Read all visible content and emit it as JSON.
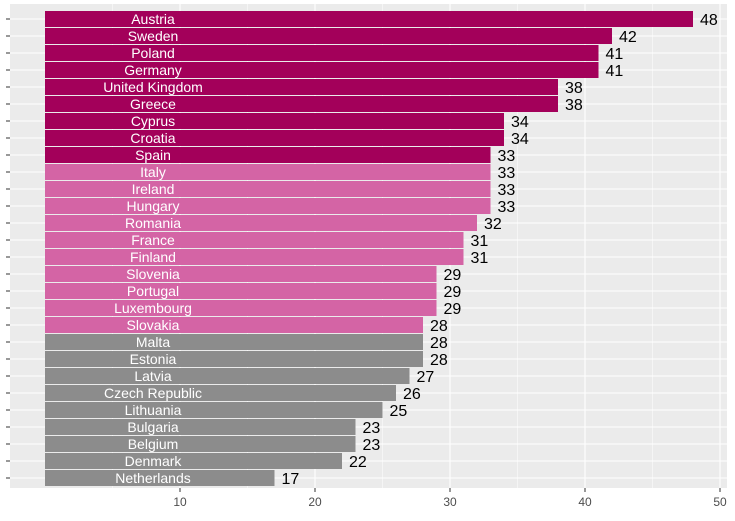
{
  "chart_data": {
    "type": "bar",
    "orientation": "horizontal",
    "title": "",
    "xlabel": "",
    "ylabel": "",
    "xlim": [
      0,
      50
    ],
    "xticks": [
      10,
      20,
      30,
      40,
      50
    ],
    "grid": true,
    "legend": "none",
    "colors": {
      "top_group": "#a3005a",
      "middle_group": "#d464a5",
      "bottom_group": "#8c8c8c",
      "panel": "#ebebeb",
      "grid": "#ffffff"
    },
    "bars": [
      {
        "category": "Austria",
        "value": 48,
        "group": "top_group"
      },
      {
        "category": "Sweden",
        "value": 42,
        "group": "top_group"
      },
      {
        "category": "Poland",
        "value": 41,
        "group": "top_group"
      },
      {
        "category": "Germany",
        "value": 41,
        "group": "top_group"
      },
      {
        "category": "United Kingdom",
        "value": 38,
        "group": "top_group"
      },
      {
        "category": "Greece",
        "value": 38,
        "group": "top_group"
      },
      {
        "category": "Cyprus",
        "value": 34,
        "group": "top_group"
      },
      {
        "category": "Croatia",
        "value": 34,
        "group": "top_group"
      },
      {
        "category": "Spain",
        "value": 33,
        "group": "top_group"
      },
      {
        "category": "Italy",
        "value": 33,
        "group": "middle_group"
      },
      {
        "category": "Ireland",
        "value": 33,
        "group": "middle_group"
      },
      {
        "category": "Hungary",
        "value": 33,
        "group": "middle_group"
      },
      {
        "category": "Romania",
        "value": 32,
        "group": "middle_group"
      },
      {
        "category": "France",
        "value": 31,
        "group": "middle_group"
      },
      {
        "category": "Finland",
        "value": 31,
        "group": "middle_group"
      },
      {
        "category": "Slovenia",
        "value": 29,
        "group": "middle_group"
      },
      {
        "category": "Portugal",
        "value": 29,
        "group": "middle_group"
      },
      {
        "category": "Luxembourg",
        "value": 29,
        "group": "middle_group"
      },
      {
        "category": "Slovakia",
        "value": 28,
        "group": "middle_group"
      },
      {
        "category": "Malta",
        "value": 28,
        "group": "bottom_group"
      },
      {
        "category": "Estonia",
        "value": 28,
        "group": "bottom_group"
      },
      {
        "category": "Latvia",
        "value": 27,
        "group": "bottom_group"
      },
      {
        "category": "Czech Republic",
        "value": 26,
        "group": "bottom_group"
      },
      {
        "category": "Lithuania",
        "value": 25,
        "group": "bottom_group"
      },
      {
        "category": "Bulgaria",
        "value": 23,
        "group": "bottom_group"
      },
      {
        "category": "Belgium",
        "value": 23,
        "group": "bottom_group"
      },
      {
        "category": "Denmark",
        "value": 22,
        "group": "bottom_group"
      },
      {
        "category": "Netherlands",
        "value": 17,
        "group": "bottom_group"
      }
    ]
  }
}
